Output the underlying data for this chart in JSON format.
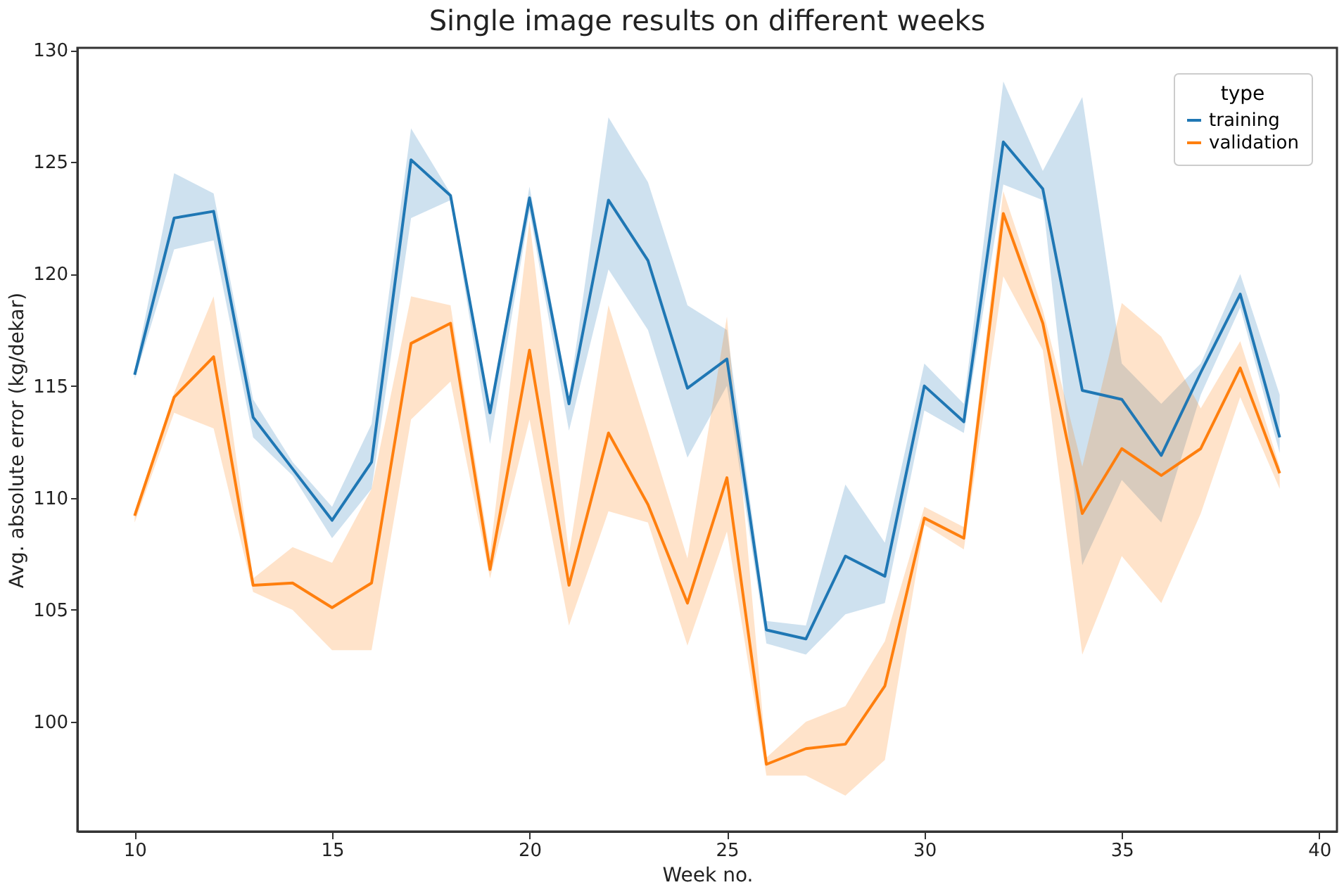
{
  "chart_data": {
    "type": "line",
    "title": "Single image results on different weeks",
    "xlabel": "Week no.",
    "ylabel": "Avg. absolute error (kg/dekar)",
    "legend_title": "type",
    "legend": "top right",
    "grid": false,
    "x": [
      10,
      11,
      12,
      13,
      14,
      15,
      16,
      17,
      18,
      19,
      20,
      21,
      22,
      23,
      24,
      25,
      26,
      27,
      28,
      29,
      30,
      31,
      32,
      33,
      34,
      35,
      36,
      37,
      38,
      39
    ],
    "xlim": [
      8.55,
      40.45
    ],
    "ylim": [
      95.1,
      130.1
    ],
    "xticks": [
      10,
      15,
      20,
      25,
      30,
      35,
      40
    ],
    "yticks": [
      100,
      105,
      110,
      115,
      120,
      125,
      130
    ],
    "series": [
      {
        "name": "training",
        "color": "#1f77b4",
        "values": [
          115.5,
          122.5,
          122.8,
          113.6,
          111.3,
          109.0,
          111.6,
          125.1,
          123.5,
          113.8,
          123.4,
          114.2,
          123.3,
          120.6,
          114.9,
          116.2,
          104.1,
          103.7,
          107.4,
          106.5,
          115.0,
          113.4,
          125.9,
          123.8,
          114.8,
          114.4,
          111.9,
          115.6,
          119.1,
          112.7
        ],
        "lower": [
          115.3,
          121.1,
          121.5,
          112.7,
          111.0,
          108.2,
          110.4,
          122.5,
          123.3,
          112.4,
          122.8,
          113.0,
          120.2,
          117.5,
          111.8,
          115.0,
          103.5,
          103.0,
          104.8,
          105.3,
          113.9,
          112.9,
          124.0,
          123.3,
          107.0,
          110.8,
          108.9,
          114.6,
          118.5,
          112.0
        ],
        "upper": [
          115.7,
          124.5,
          123.6,
          114.4,
          111.6,
          109.6,
          113.3,
          126.5,
          123.6,
          114.0,
          123.9,
          114.5,
          127.0,
          124.1,
          118.6,
          117.5,
          104.5,
          104.3,
          110.6,
          108.0,
          116.0,
          114.2,
          128.6,
          124.6,
          127.9,
          116.0,
          114.2,
          116.0,
          120.0,
          114.6
        ]
      },
      {
        "name": "validation",
        "color": "#ff7f0e",
        "values": [
          109.2,
          114.5,
          116.3,
          106.1,
          106.2,
          105.1,
          106.2,
          116.9,
          117.8,
          106.8,
          116.6,
          106.1,
          112.9,
          109.7,
          105.3,
          110.9,
          98.1,
          98.8,
          99.0,
          101.6,
          109.1,
          108.2,
          122.7,
          117.8,
          109.3,
          112.2,
          111.0,
          112.2,
          115.8,
          111.1
        ],
        "lower": [
          108.9,
          113.8,
          113.1,
          105.8,
          105.0,
          103.2,
          103.2,
          113.5,
          115.2,
          106.4,
          113.5,
          104.3,
          109.4,
          108.9,
          103.4,
          108.5,
          97.6,
          97.6,
          96.7,
          98.3,
          108.8,
          107.7,
          119.9,
          116.6,
          103.0,
          107.4,
          105.3,
          109.3,
          114.5,
          110.4
        ],
        "upper": [
          109.4,
          114.7,
          119.0,
          106.4,
          107.8,
          107.1,
          110.4,
          119.0,
          118.6,
          107.5,
          122.4,
          107.5,
          118.6,
          113.0,
          107.3,
          118.1,
          98.4,
          100.0,
          100.7,
          103.6,
          109.6,
          108.7,
          123.7,
          118.4,
          111.4,
          118.7,
          117.2,
          114.0,
          117.0,
          111.4
        ]
      }
    ]
  }
}
